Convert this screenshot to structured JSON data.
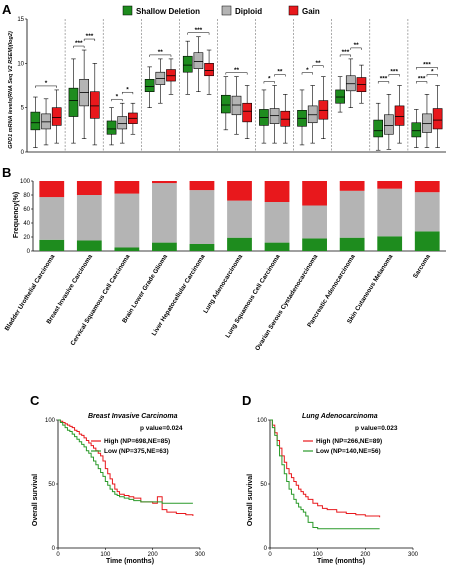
{
  "panels": {
    "a": "A",
    "b": "B",
    "c": "C",
    "d": "D"
  },
  "colors": {
    "shallow_deletion": "#1e8c1e",
    "diploid": "#b4b4b4",
    "gain": "#e8181c",
    "high": "#e8181c",
    "low": "#2a9a2a"
  },
  "legend": {
    "shallow_deletion": "Shallow Deletion",
    "diploid": "Diploid",
    "gain": "Gain"
  },
  "chart_data": [
    {
      "id": "A",
      "type": "box",
      "ylabel": "GPD1 mRNA levels(RNA Seq V2 RSEM)(log2)",
      "ylim": [
        0,
        15
      ],
      "yticks": [
        "0",
        "5",
        "10",
        "15"
      ],
      "series": [
        "Shallow Deletion",
        "Diploid",
        "Gain"
      ],
      "groups": [
        {
          "significance": [
            "*"
          ],
          "boxes": [
            {
              "q1": 2.5,
              "median": 3.3,
              "q3": 4.5,
              "low": 0.5,
              "high": 6.2
            },
            {
              "q1": 2.6,
              "median": 3.4,
              "q3": 4.3,
              "low": 0.8,
              "high": 6.0
            },
            {
              "q1": 3.0,
              "median": 3.9,
              "q3": 5.0,
              "low": 1.0,
              "high": 7.0
            }
          ]
        },
        {
          "significance": [
            "***",
            "***"
          ],
          "boxes": [
            {
              "q1": 4.0,
              "median": 5.8,
              "q3": 7.2,
              "low": 1.0,
              "high": 10.5
            },
            {
              "q1": 5.2,
              "median": 6.7,
              "q3": 8.2,
              "low": 1.5,
              "high": 11.5
            },
            {
              "q1": 3.8,
              "median": 5.2,
              "q3": 6.8,
              "low": 0.8,
              "high": 10.0
            }
          ]
        },
        {
          "significance": [
            "*",
            "*"
          ],
          "boxes": [
            {
              "q1": 2.0,
              "median": 2.6,
              "q3": 3.5,
              "low": 0.8,
              "high": 5.0
            },
            {
              "q1": 2.6,
              "median": 3.2,
              "q3": 4.0,
              "low": 1.0,
              "high": 5.5
            },
            {
              "q1": 3.2,
              "median": 3.8,
              "q3": 4.4,
              "low": 2.0,
              "high": 5.5
            }
          ]
        },
        {
          "significance": [
            "**"
          ],
          "boxes": [
            {
              "q1": 6.8,
              "median": 7.4,
              "q3": 8.2,
              "low": 5.0,
              "high": 9.6
            },
            {
              "q1": 7.6,
              "median": 8.3,
              "q3": 9.0,
              "low": 5.5,
              "high": 10.5
            },
            {
              "q1": 8.0,
              "median": 8.6,
              "q3": 9.3,
              "low": 6.5,
              "high": 10.5
            }
          ]
        },
        {
          "significance": [
            "***"
          ],
          "boxes": [
            {
              "q1": 9.0,
              "median": 9.8,
              "q3": 10.8,
              "low": 6.5,
              "high": 12.5
            },
            {
              "q1": 9.4,
              "median": 10.2,
              "q3": 11.2,
              "low": 6.8,
              "high": 13.0
            },
            {
              "q1": 8.6,
              "median": 9.2,
              "q3": 10.0,
              "low": 6.5,
              "high": 11.5
            }
          ]
        },
        {
          "significance": [
            "**"
          ],
          "boxes": [
            {
              "q1": 4.4,
              "median": 5.3,
              "q3": 6.4,
              "low": 2.5,
              "high": 8.5
            },
            {
              "q1": 4.2,
              "median": 5.3,
              "q3": 6.3,
              "low": 2.0,
              "high": 8.5
            },
            {
              "q1": 3.4,
              "median": 4.6,
              "q3": 5.5,
              "low": 1.5,
              "high": 7.5
            }
          ]
        },
        {
          "significance": [
            "*",
            "**"
          ],
          "boxes": [
            {
              "q1": 3.0,
              "median": 3.9,
              "q3": 4.8,
              "low": 1.0,
              "high": 7.0
            },
            {
              "q1": 3.2,
              "median": 4.1,
              "q3": 4.9,
              "low": 1.0,
              "high": 7.5
            },
            {
              "q1": 2.9,
              "median": 3.7,
              "q3": 4.6,
              "low": 1.0,
              "high": 6.5
            }
          ]
        },
        {
          "significance": [
            "*",
            "**"
          ],
          "boxes": [
            {
              "q1": 2.9,
              "median": 3.8,
              "q3": 4.7,
              "low": 0.8,
              "high": 7.0
            },
            {
              "q1": 3.3,
              "median": 4.2,
              "q3": 5.2,
              "low": 1.0,
              "high": 7.5
            },
            {
              "q1": 3.7,
              "median": 4.7,
              "q3": 5.8,
              "low": 1.5,
              "high": 8.5
            }
          ]
        },
        {
          "significance": [
            "***",
            "**"
          ],
          "boxes": [
            {
              "q1": 5.5,
              "median": 6.2,
              "q3": 7.0,
              "low": 4.5,
              "high": 8.5
            },
            {
              "q1": 6.9,
              "median": 7.7,
              "q3": 8.6,
              "low": 5.0,
              "high": 10.5
            },
            {
              "q1": 6.8,
              "median": 7.6,
              "q3": 8.4,
              "low": 5.5,
              "high": 9.8
            }
          ]
        },
        {
          "significance": [
            "***",
            "***"
          ],
          "boxes": [
            {
              "q1": 1.7,
              "median": 2.4,
              "q3": 3.6,
              "low": 0.2,
              "high": 5.5
            },
            {
              "q1": 2.0,
              "median": 3.0,
              "q3": 4.2,
              "low": 0.3,
              "high": 6.5
            },
            {
              "q1": 3.0,
              "median": 4.0,
              "q3": 5.2,
              "low": 1.0,
              "high": 7.5
            }
          ]
        },
        {
          "significance": [
            "***",
            "*",
            "***"
          ],
          "boxes": [
            {
              "q1": 1.7,
              "median": 2.4,
              "q3": 3.3,
              "low": 0.5,
              "high": 4.8
            },
            {
              "q1": 2.2,
              "median": 3.2,
              "q3": 4.3,
              "low": 0.5,
              "high": 6.5
            },
            {
              "q1": 2.6,
              "median": 3.6,
              "q3": 4.9,
              "low": 0.5,
              "high": 7.5
            }
          ]
        }
      ]
    },
    {
      "id": "B",
      "type": "stacked-bar",
      "ylabel": "Frequency(%)",
      "ylim": [
        0,
        100
      ],
      "yticks": [
        "0",
        "20",
        "40",
        "60",
        "80",
        "100"
      ],
      "categories": [
        "Bladder Urothelial Carcinoma",
        "Breast Invasive Carcinoma",
        "Cervical Squamous Cell Carcinoma",
        "Brain Lower Grade Glioma",
        "Liver Hepatocellular Carcinoma",
        "Lung Adenocarcinoma",
        "Lung Squamous Cell Carcinoma",
        "Ovarian Serous Cystadenocarcinoma",
        "Pancreatic Adenocarcinoma",
        "Skin Cutaneous Melanoma",
        "Sarcoma"
      ],
      "series": [
        {
          "name": "Shallow Deletion",
          "values": [
            16,
            15,
            5,
            12,
            10,
            19,
            12,
            18,
            19,
            21,
            28
          ]
        },
        {
          "name": "Diploid",
          "values": [
            61,
            65,
            77,
            85,
            77,
            53,
            58,
            47,
            67,
            68,
            56
          ]
        },
        {
          "name": "Gain",
          "values": [
            23,
            20,
            18,
            3,
            13,
            28,
            30,
            35,
            14,
            11,
            16
          ]
        }
      ]
    },
    {
      "id": "C",
      "type": "line",
      "subtitle": "Breast Invasive Carcinoma",
      "pvalue": "p value=0.024",
      "xlabel": "Time (months)",
      "ylabel": "Overall survival",
      "xlim": [
        0,
        300
      ],
      "ylim": [
        0,
        100
      ],
      "xticks": [
        "0",
        "100",
        "200",
        "300"
      ],
      "yticks": [
        "0",
        "50",
        "100"
      ],
      "series": [
        {
          "name": "High (NP=698,NE=85)",
          "x": [
            0,
            5,
            10,
            15,
            20,
            25,
            30,
            35,
            40,
            45,
            50,
            55,
            60,
            65,
            70,
            75,
            80,
            85,
            90,
            95,
            100,
            105,
            110,
            115,
            120,
            125,
            130,
            140,
            150,
            160,
            175,
            200,
            210,
            220,
            230,
            250,
            270,
            285
          ],
          "y": [
            100,
            99,
            98,
            97,
            96,
            95,
            94,
            92,
            91,
            89,
            88,
            86,
            84,
            82,
            80,
            78,
            76,
            74,
            72,
            68,
            62,
            58,
            54,
            50,
            46,
            44,
            42,
            41,
            40,
            39,
            36,
            35,
            40,
            30,
            28,
            27,
            26,
            25
          ]
        },
        {
          "name": "Low (NP=375,NE=63)",
          "x": [
            0,
            5,
            10,
            15,
            20,
            25,
            30,
            35,
            40,
            45,
            50,
            55,
            60,
            65,
            70,
            75,
            80,
            85,
            90,
            95,
            100,
            105,
            110,
            115,
            120,
            125,
            130,
            140,
            150,
            160,
            175,
            200,
            220,
            250,
            285
          ],
          "y": [
            100,
            98,
            96,
            94,
            92,
            91,
            89,
            87,
            85,
            83,
            81,
            79,
            76,
            74,
            71,
            68,
            65,
            62,
            59,
            56,
            52,
            49,
            46,
            44,
            42,
            41,
            40,
            39,
            38,
            37,
            36,
            36,
            35,
            35,
            35
          ]
        }
      ]
    },
    {
      "id": "D",
      "type": "line",
      "subtitle": "Lung Adenocarcinoma",
      "pvalue": "p value=0.023",
      "xlabel": "Time (months)",
      "ylabel": "Overall survival",
      "xlim": [
        0,
        300
      ],
      "ylim": [
        0,
        100
      ],
      "xticks": [
        "0",
        "100",
        "200",
        "300"
      ],
      "yticks": [
        "0",
        "50",
        "100"
      ],
      "series": [
        {
          "name": "High (NP=266,NE=89)",
          "x": [
            0,
            5,
            10,
            15,
            20,
            25,
            30,
            35,
            40,
            45,
            50,
            55,
            60,
            65,
            70,
            75,
            80,
            90,
            100,
            110,
            120,
            140,
            160,
            180,
            200,
            230
          ],
          "y": [
            100,
            96,
            90,
            84,
            78,
            72,
            67,
            62,
            58,
            55,
            52,
            49,
            46,
            44,
            42,
            40,
            38,
            35,
            33,
            31,
            30,
            28,
            27,
            26,
            25,
            24
          ]
        },
        {
          "name": "Low (NP=140,NE=56)",
          "x": [
            0,
            5,
            10,
            15,
            20,
            25,
            30,
            35,
            40,
            45,
            50,
            55,
            60,
            65,
            70,
            75,
            80,
            90,
            100,
            120,
            150,
            180,
            230
          ],
          "y": [
            100,
            94,
            88,
            80,
            72,
            65,
            58,
            52,
            46,
            42,
            38,
            35,
            32,
            30,
            28,
            25,
            20,
            16,
            15,
            15,
            15,
            15,
            15
          ]
        }
      ]
    }
  ]
}
